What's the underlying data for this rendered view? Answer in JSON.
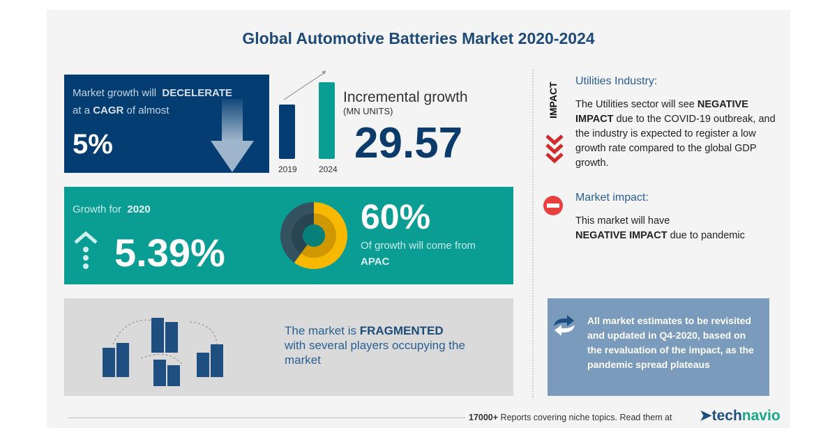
{
  "title": "Global Automotive Batteries Market 2020-2024",
  "cagr": {
    "line1_pre": "Market growth will",
    "line1_bold": "DECELERATE",
    "line2_pre": "at a",
    "line2_bold": "CAGR",
    "line2_post": "of almost",
    "value": "5%",
    "icon": "arrow-down-icon"
  },
  "incremental": {
    "bar_labels": [
      "2019",
      "2024"
    ],
    "title": "Incremental growth",
    "unit": "(MN UNITS)",
    "value": "29.57"
  },
  "growth2020": {
    "label": "Growth for",
    "year": "2020",
    "value": "5.39%",
    "icon": "arrow-up-dotted-icon"
  },
  "region": {
    "share": "60%",
    "text": "Of growth will come from",
    "region": "APAC",
    "share_fraction": 0.6,
    "colors": {
      "primary": "#f9b800",
      "rest": "#34525f"
    }
  },
  "fragmented": {
    "pre": "The market is",
    "bold": "FRAGMENTED",
    "rest": "with several players occupying the market"
  },
  "impact": {
    "vertical_label": "IMPACT",
    "utilities_head": "Utilities Industry:",
    "utilities_pre": "The Utilities sector will see",
    "utilities_bold": "NEGATIVE IMPACT",
    "utilities_post": "due to the COVID-19 outbreak, and the industry is expected to register a low growth rate compared to the global GDP growth.",
    "market_head": "Market impact:",
    "market_pre": "This market will have",
    "market_bold": "NEGATIVE IMPACT",
    "market_post": "due to pandemic"
  },
  "note": "All market estimates to be revisited and updated in Q4-2020, based on the revaluation of the impact, as the pandemic spread plateaus",
  "footer": {
    "count": "17000+",
    "text": "Reports covering niche topics. Read them at",
    "brand_tech": "tech",
    "brand_navio": "navio"
  },
  "colors": {
    "navy": "#033d72",
    "teal": "#0a9d94",
    "red": "#e8403f",
    "title": "#1e4a78"
  }
}
